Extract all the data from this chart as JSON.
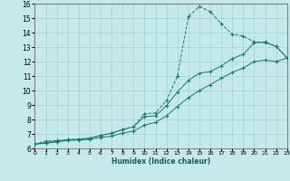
{
  "title": "",
  "xlabel": "Humidex (Indice chaleur)",
  "ylabel": "",
  "background_color": "#c5e8e8",
  "grid_color": "#aad4d4",
  "line_color": "#1a7a6a",
  "xlim": [
    0,
    23
  ],
  "ylim": [
    6,
    16
  ],
  "xticks": [
    0,
    1,
    2,
    3,
    4,
    5,
    6,
    7,
    8,
    9,
    10,
    11,
    12,
    13,
    14,
    15,
    16,
    17,
    18,
    19,
    20,
    21,
    22,
    23
  ],
  "yticks": [
    6,
    7,
    8,
    9,
    10,
    11,
    12,
    13,
    14,
    15,
    16
  ],
  "line1_x": [
    0,
    1,
    2,
    3,
    4,
    5,
    6,
    7,
    8,
    9,
    10,
    11,
    12,
    13,
    14,
    15,
    16,
    17,
    18,
    19,
    20,
    21,
    22,
    23
  ],
  "line1_y": [
    6.3,
    6.5,
    6.55,
    6.6,
    6.65,
    6.7,
    6.9,
    7.05,
    7.3,
    7.5,
    8.4,
    8.45,
    9.3,
    11.0,
    15.1,
    15.8,
    15.45,
    14.6,
    13.9,
    13.75,
    13.35,
    13.3,
    13.05,
    12.25
  ],
  "line2_x": [
    0,
    1,
    2,
    3,
    4,
    5,
    6,
    7,
    8,
    9,
    10,
    11,
    12,
    13,
    14,
    15,
    16,
    17,
    18,
    19,
    20,
    21,
    22,
    23
  ],
  "line2_y": [
    6.3,
    6.4,
    6.5,
    6.6,
    6.62,
    6.7,
    6.9,
    7.05,
    7.3,
    7.5,
    8.2,
    8.25,
    8.95,
    9.9,
    10.7,
    11.2,
    11.3,
    11.7,
    12.2,
    12.5,
    13.3,
    13.35,
    13.05,
    12.25
  ],
  "line3_x": [
    0,
    1,
    2,
    3,
    4,
    5,
    6,
    7,
    8,
    9,
    10,
    11,
    12,
    13,
    14,
    15,
    16,
    17,
    18,
    19,
    20,
    21,
    22,
    23
  ],
  "line3_y": [
    6.3,
    6.35,
    6.45,
    6.55,
    6.58,
    6.62,
    6.75,
    6.85,
    7.05,
    7.2,
    7.6,
    7.8,
    8.25,
    8.9,
    9.5,
    10.0,
    10.4,
    10.85,
    11.25,
    11.55,
    12.0,
    12.1,
    12.0,
    12.25
  ]
}
